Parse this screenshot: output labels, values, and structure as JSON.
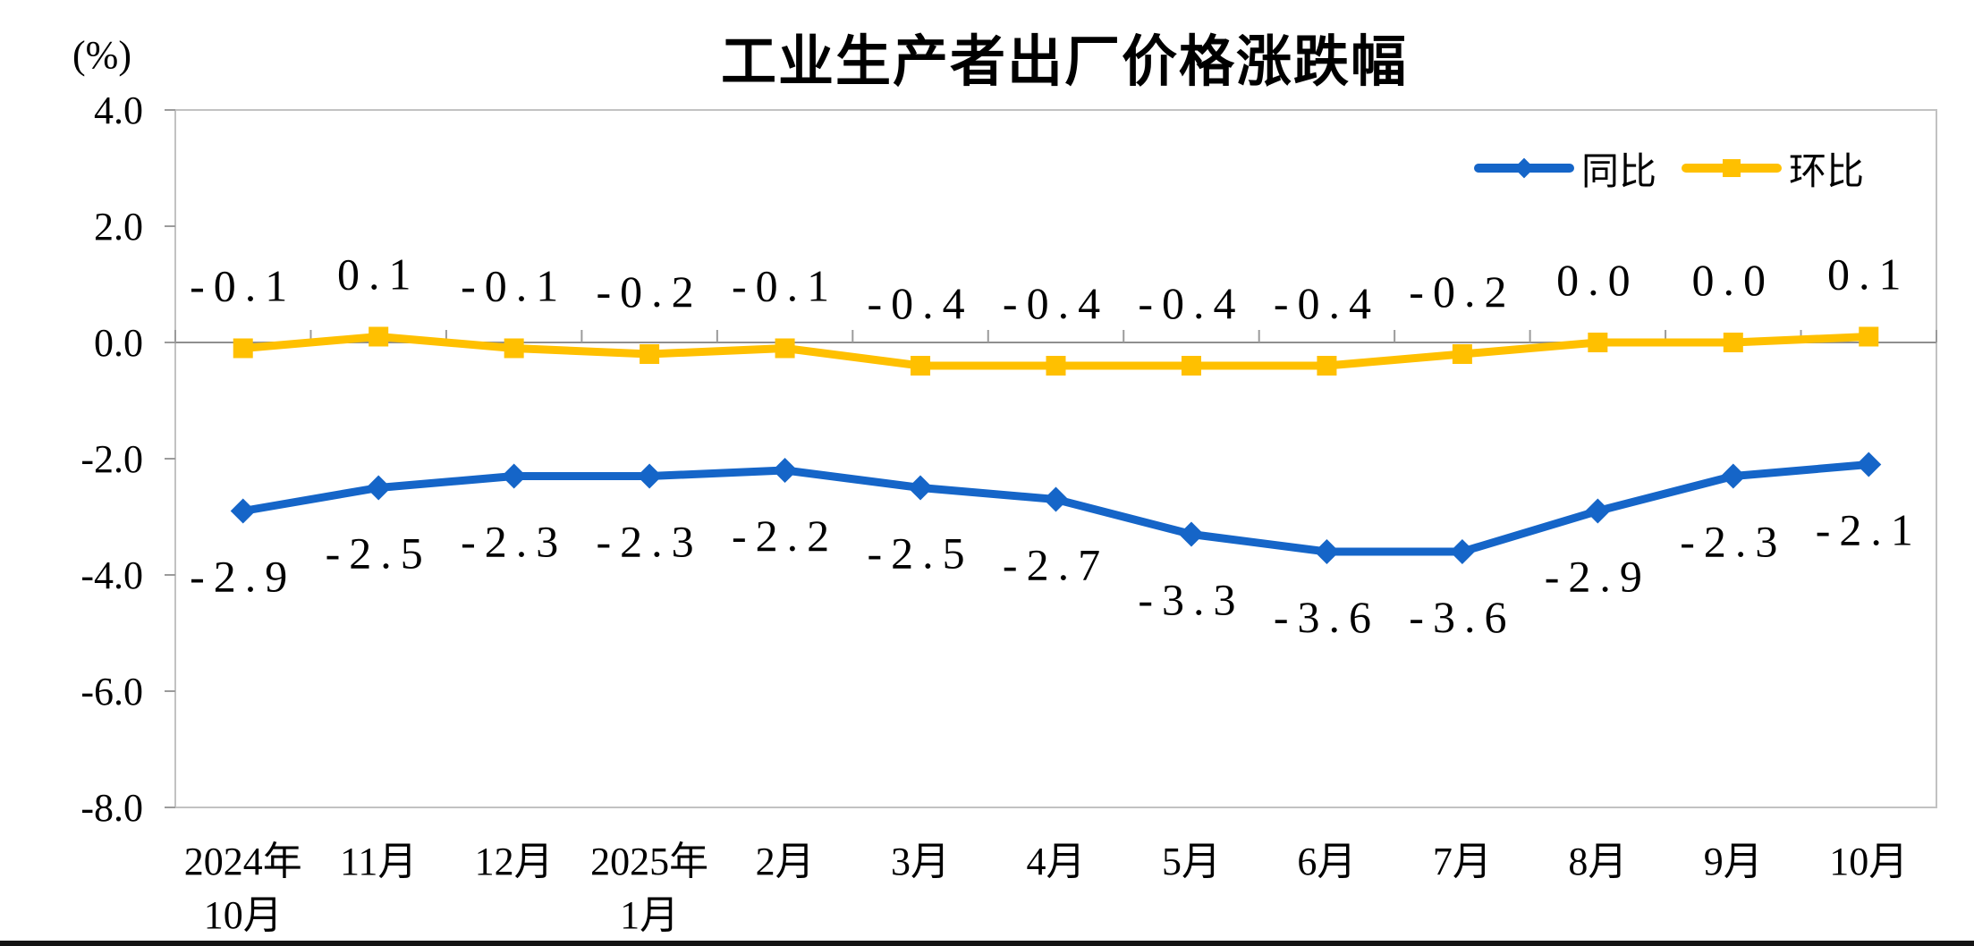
{
  "page": {
    "background": "#ffffff"
  },
  "chart_data": {
    "type": "line",
    "title": "工业生产者出厂价格涨跌幅",
    "unit_label": "(%)",
    "categories": [
      "2024年\n10月",
      "11月",
      "12月",
      "2025年\n1月",
      "2月",
      "3月",
      "4月",
      "5月",
      "6月",
      "7月",
      "8月",
      "9月",
      "10月"
    ],
    "series": [
      {
        "name": "同比",
        "color": "#1565C8",
        "marker": "diamond",
        "values": [
          -2.9,
          -2.5,
          -2.3,
          -2.3,
          -2.2,
          -2.5,
          -2.7,
          -3.3,
          -3.6,
          -3.6,
          -2.9,
          -2.3,
          -2.1
        ]
      },
      {
        "name": "环比",
        "color": "#FFC000",
        "marker": "square",
        "values": [
          -0.1,
          0.1,
          -0.1,
          -0.2,
          -0.1,
          -0.4,
          -0.4,
          -0.4,
          -0.4,
          -0.2,
          0.0,
          0.0,
          0.1
        ]
      }
    ],
    "y_axis": {
      "min": -8.0,
      "max": 4.0,
      "step": 2.0,
      "tick_labels": [
        "4.0",
        "2.0",
        "0.0",
        "-2.0",
        "-4.0",
        "-6.0",
        "-8.0"
      ]
    },
    "legend": {
      "position": "top-right",
      "items": [
        "同比",
        "环比"
      ]
    },
    "grid": "off",
    "data_labels": "on",
    "colors": {
      "axis_line": "#8f8f8f",
      "plot_border": "#c2c2c2",
      "tick": "#9b9b9b",
      "bottom_bar": "#141414"
    }
  }
}
